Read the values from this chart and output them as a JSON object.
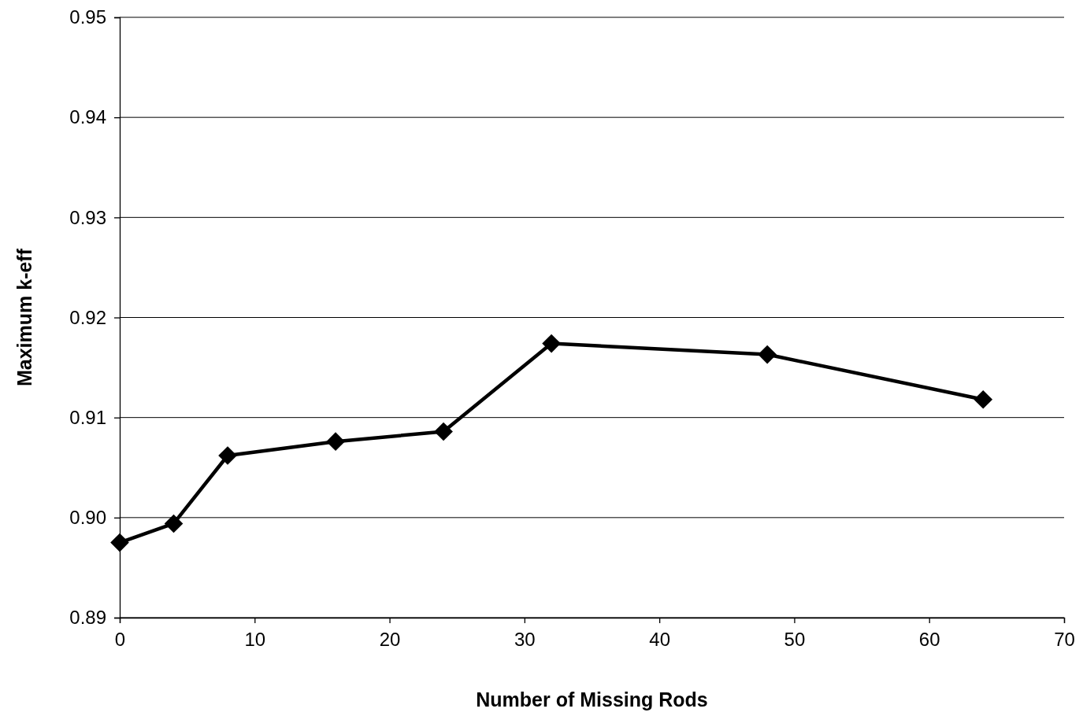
{
  "chart_data": {
    "type": "line",
    "xlabel": "Number of Missing Rods",
    "ylabel": "Maximum k-eff",
    "x": [
      0,
      4,
      8,
      16,
      24,
      32,
      48,
      64
    ],
    "series": [
      {
        "color": "#000000",
        "values": [
          0.8975,
          0.8994,
          0.9062,
          0.9076,
          0.9086,
          0.9174,
          0.9163,
          0.9118
        ]
      }
    ],
    "xlim": [
      0,
      70
    ],
    "xticks": [
      0,
      10,
      20,
      30,
      40,
      50,
      60,
      70
    ],
    "ylim": [
      0.89,
      0.95
    ],
    "yticks": [
      {
        "value": 0.89,
        "label": "0.89"
      },
      {
        "value": 0.9,
        "label": "0.90"
      },
      {
        "value": 0.91,
        "label": "0.91"
      },
      {
        "value": 0.92,
        "label": "0.92"
      },
      {
        "value": 0.93,
        "label": "0.93"
      },
      {
        "value": 0.94,
        "label": "0.94"
      },
      {
        "value": 0.95,
        "label": "0.95"
      }
    ],
    "grid": "y",
    "marker": "diamond",
    "line_style": "solid"
  }
}
